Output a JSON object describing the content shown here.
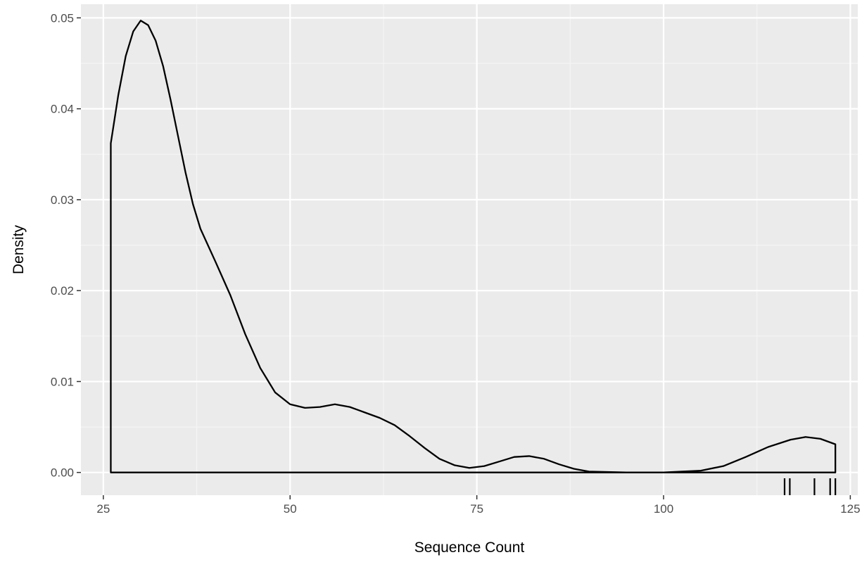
{
  "chart_data": {
    "type": "line",
    "subtype": "density",
    "title": "",
    "xlabel": "Sequence Count",
    "ylabel": "Density",
    "xlim": [
      22,
      126
    ],
    "ylim": [
      -0.0025,
      0.0515
    ],
    "x_ticks": [
      25,
      50,
      75,
      100,
      125
    ],
    "x_tick_labels": [
      "25",
      "50",
      "75",
      "100",
      "125"
    ],
    "y_ticks": [
      0.0,
      0.01,
      0.02,
      0.03,
      0.04,
      0.05
    ],
    "y_tick_labels": [
      "0.00",
      "0.01",
      "0.02",
      "0.03",
      "0.04",
      "0.05"
    ],
    "grid": true,
    "legend": "none",
    "colors": {
      "panel_background": "#ebebeb",
      "grid_major": "#ffffff",
      "grid_minor": "#f5f5f5",
      "line": "#000000"
    },
    "series": [
      {
        "x": [
          26,
          27,
          28,
          29,
          30,
          31,
          32,
          33,
          34,
          35,
          36,
          37,
          38,
          40,
          42,
          44,
          46,
          48,
          50,
          52,
          54,
          56,
          58,
          60,
          62,
          64,
          66,
          68,
          70,
          72,
          74,
          76,
          78,
          80,
          82,
          84,
          86,
          88,
          90,
          95,
          100,
          105,
          108,
          111,
          114,
          117,
          119,
          121,
          123
        ],
        "y": [
          0.0362,
          0.0415,
          0.0458,
          0.0485,
          0.0497,
          0.0492,
          0.0475,
          0.0447,
          0.041,
          0.037,
          0.033,
          0.0295,
          0.0268,
          0.0232,
          0.0195,
          0.0152,
          0.0115,
          0.0088,
          0.0075,
          0.0071,
          0.0072,
          0.0075,
          0.0072,
          0.0066,
          0.006,
          0.0052,
          0.004,
          0.0027,
          0.0015,
          0.0008,
          0.0005,
          0.0007,
          0.0012,
          0.0017,
          0.0018,
          0.0015,
          0.0009,
          0.0004,
          0.0001,
          0.0,
          0.0,
          0.0002,
          0.0007,
          0.0017,
          0.0028,
          0.0036,
          0.0039,
          0.0037,
          0.0031
        ]
      }
    ],
    "rug": [
      116.2,
      116.9,
      120.2,
      122.3,
      123.0
    ]
  }
}
